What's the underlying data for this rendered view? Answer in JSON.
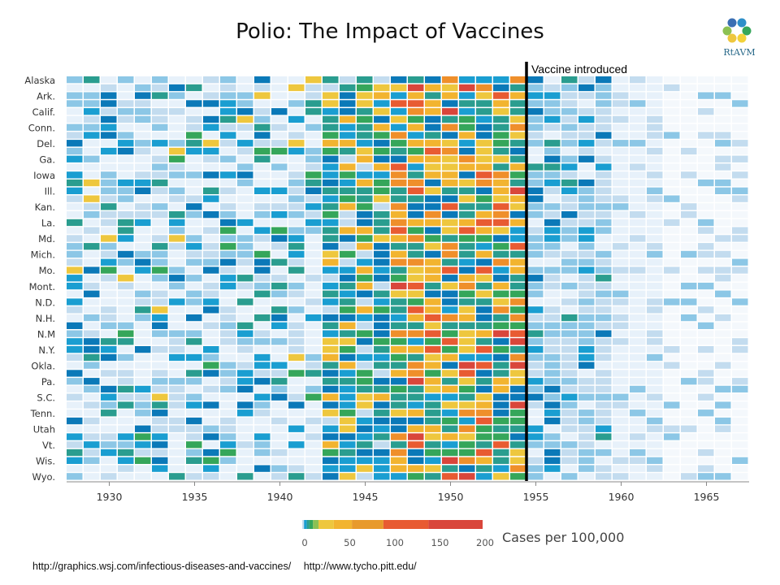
{
  "title": "Polio: The Impact of Vaccines",
  "logo_text": "RtAVM",
  "annotation": "Vaccine introduced",
  "credits": [
    "http://graphics.wsj.com/infectious-diseases-and-vaccines/",
    "http://www.tycho.pitt.edu/"
  ],
  "colors": {
    "vaccine_line": "#000000",
    "scale": [
      "#e7f1fa",
      "#c3dcef",
      "#8cc7e6",
      "#1a9ed1",
      "#0b79b8",
      "#2a9d8f",
      "#35a65a",
      "#8cc153",
      "#eec73e",
      "#f2b430",
      "#ef8f2b",
      "#e85b32",
      "#d9463b"
    ]
  },
  "chart_data": {
    "type": "heatmap",
    "title": "Polio: The Impact of Vaccines",
    "x_ticks": [
      "1930",
      "1935",
      "1940",
      "1945",
      "1950",
      "1955",
      "1960",
      "1965"
    ],
    "x_range": [
      1928,
      1968
    ],
    "y_labels": [
      "Alaska",
      "Ark.",
      "Calif.",
      "Conn.",
      "Del.",
      "Ga.",
      "Iowa",
      "Ill.",
      "Kan.",
      "La.",
      "Md.",
      "Mich.",
      "Mo.",
      "Mont.",
      "N.D.",
      "N.H.",
      "N.M",
      "N.Y.",
      "Okla.",
      "Pa.",
      "S.C.",
      "Tenn.",
      "Utah",
      "Vt.",
      "Wis.",
      "Wyo."
    ],
    "rows": 51,
    "vaccine_year": 1955,
    "legend": {
      "label": "Cases per 100,000",
      "ticks": [
        "0",
        "50",
        "100",
        "150",
        "200"
      ],
      "range": [
        0,
        200
      ]
    }
  }
}
